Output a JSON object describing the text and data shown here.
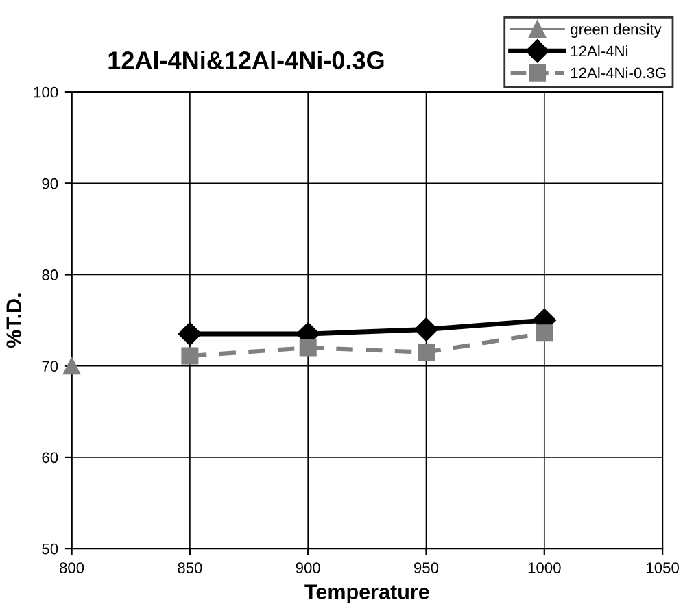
{
  "chart_data": {
    "type": "line",
    "title": "12Al-4Ni&12Al-4Ni-0.3G",
    "xlabel": "Temperature",
    "ylabel": "%T.D.",
    "series": [
      {
        "name": "green density",
        "color": "#808080",
        "x": [
          800
        ],
        "values": [
          70
        ],
        "marker": "triangle",
        "line_style": "solid"
      },
      {
        "name": "12Al-4Ni",
        "color": "#000000",
        "x": [
          850,
          900,
          950,
          1000
        ],
        "values": [
          73.5,
          73.5,
          74,
          75
        ],
        "marker": "diamond",
        "line_style": "solid"
      },
      {
        "name": "12Al-4Ni-0.3G",
        "color": "#808080",
        "x": [
          850,
          900,
          950,
          1000
        ],
        "values": [
          71.1,
          72,
          71.5,
          73.6
        ],
        "marker": "square",
        "line_style": "dashed"
      }
    ],
    "xlim": [
      800,
      1050
    ],
    "xticks": [
      800,
      850,
      900,
      950,
      1000,
      1050
    ],
    "ylim": [
      50,
      100
    ],
    "yticks": [
      50,
      60,
      70,
      80,
      90,
      100
    ],
    "grid": true,
    "legend": "top right"
  }
}
